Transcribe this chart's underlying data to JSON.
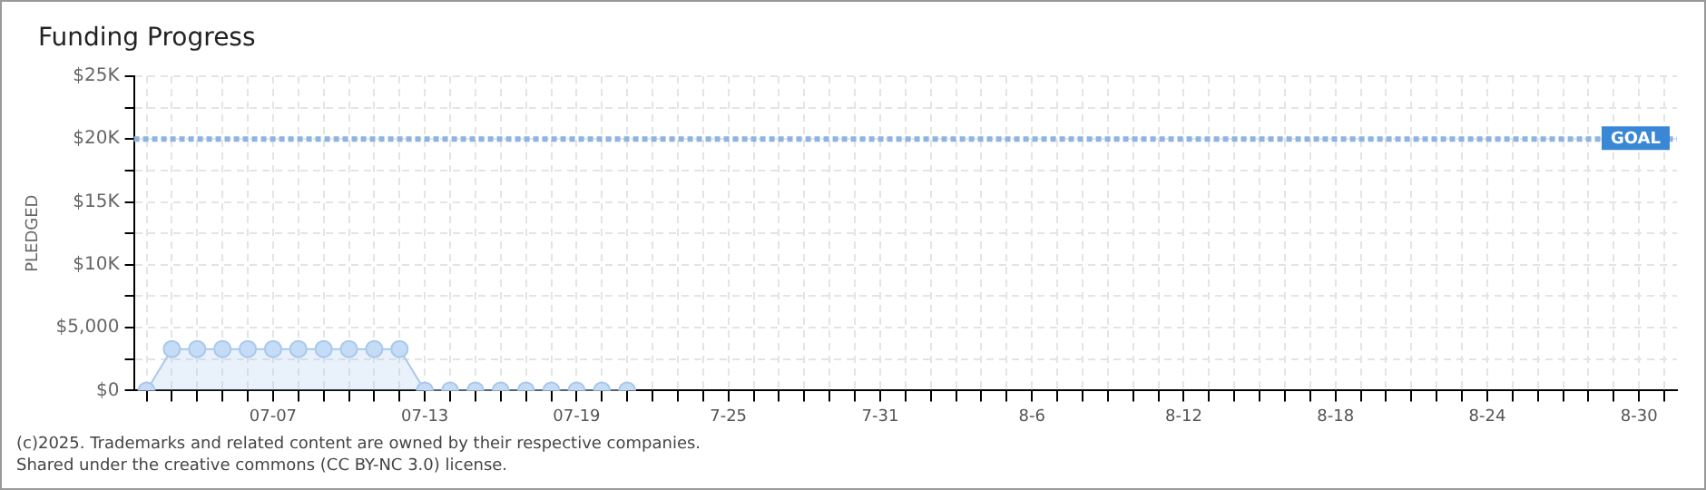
{
  "chart_data": {
    "type": "area",
    "title": "Funding Progress",
    "ylabel": "PLEDGED",
    "categories": [
      null,
      null,
      null,
      null,
      null,
      "07-07",
      null,
      null,
      null,
      null,
      null,
      "07-13",
      null,
      null,
      null,
      null,
      null,
      "07-19",
      null,
      null,
      null,
      null,
      null,
      "7-25",
      null,
      null,
      null,
      null,
      null,
      "7-31",
      null,
      null,
      null,
      null,
      null,
      "8-6",
      null,
      null,
      null,
      null,
      null,
      "8-12",
      null,
      null,
      null,
      null,
      null,
      "8-18",
      null,
      null,
      null,
      null,
      null,
      "8-24",
      null,
      null,
      null,
      null,
      null,
      "8-30",
      null
    ],
    "series": [
      {
        "color": "#a9c8ec",
        "values": [
          0,
          3300,
          3300,
          3300,
          3300,
          3300,
          3300,
          3300,
          3300,
          3300,
          3300,
          0,
          0,
          0,
          0,
          0,
          0,
          0,
          0,
          0,
          null,
          null,
          null,
          null,
          null,
          null,
          null,
          null,
          null,
          null,
          null,
          null,
          null,
          null,
          null,
          null,
          null,
          null,
          null,
          null,
          null,
          null,
          null,
          null,
          null,
          null,
          null,
          null,
          null,
          null,
          null,
          null,
          null,
          null,
          null,
          null,
          null,
          null,
          null,
          null,
          null
        ]
      }
    ],
    "ylim": [
      0,
      25000
    ],
    "yticks": [
      {
        "value": 0,
        "label": "$0"
      },
      {
        "value": 2500,
        "label": null
      },
      {
        "value": 5000,
        "label": "$5,000"
      },
      {
        "value": 7500,
        "label": null
      },
      {
        "value": 10000,
        "label": "$10K"
      },
      {
        "value": 12500,
        "label": null
      },
      {
        "value": 15000,
        "label": "$15K"
      },
      {
        "value": 17500,
        "label": null
      },
      {
        "value": 20000,
        "label": "$20K"
      },
      {
        "value": 22500,
        "label": null
      },
      {
        "value": 25000,
        "label": "$25K"
      }
    ],
    "ref_lines": [
      {
        "axis": "y",
        "value": 20000,
        "label": "GOAL",
        "color": "#8db4e2",
        "line_style": "dotted"
      }
    ],
    "grid": true,
    "legend": false,
    "marker": "circle",
    "annotations": [
      "(c)2025. Trademarks and related content are owned by their respective companies.",
      "Shared under the creative commons (CC BY-NC 3.0) license."
    ]
  }
}
